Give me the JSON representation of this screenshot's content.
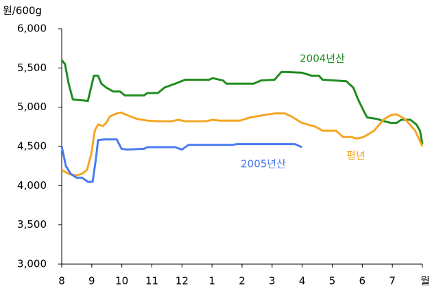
{
  "chart_data": {
    "type": "line",
    "y_axis_label": "원/600g",
    "xlim": [
      0,
      12
    ],
    "xticks": [
      {
        "value": 0,
        "label": "8"
      },
      {
        "value": 1,
        "label": "9"
      },
      {
        "value": 2,
        "label": "10"
      },
      {
        "value": 3,
        "label": "11"
      },
      {
        "value": 4,
        "label": "12"
      },
      {
        "value": 5,
        "label": "1"
      },
      {
        "value": 6,
        "label": "2"
      },
      {
        "value": 7,
        "label": "3"
      },
      {
        "value": 8,
        "label": "4"
      },
      {
        "value": 9,
        "label": "5"
      },
      {
        "value": 10,
        "label": "6"
      },
      {
        "value": 11,
        "label": "7"
      },
      {
        "value": 12,
        "label": "월"
      }
    ],
    "ylim": [
      3000,
      6000
    ],
    "yticks": [
      {
        "value": 3000,
        "label": "3,000"
      },
      {
        "value": 3500,
        "label": "3,500"
      },
      {
        "value": 4000,
        "label": "4,000"
      },
      {
        "value": 4500,
        "label": "4,500"
      },
      {
        "value": 5000,
        "label": "5,000"
      },
      {
        "value": 5500,
        "label": "5,500"
      },
      {
        "value": 6000,
        "label": "6,000"
      }
    ],
    "series": [
      {
        "name": "2004년산",
        "color": "#1e8c1e",
        "x": [
          0,
          0.11,
          0.23,
          0.37,
          0.87,
          1.07,
          1.21,
          1.32,
          1.48,
          1.71,
          1.94,
          2.1,
          2.74,
          2.85,
          3.2,
          3.42,
          3.77,
          4.11,
          4.91,
          5.02,
          5.37,
          5.48,
          6.39,
          6.62,
          7.08,
          7.31,
          7.99,
          8.33,
          8.56,
          8.68,
          9.47,
          9.7,
          9.86,
          10.05,
          10.16,
          10.5,
          10.73,
          10.96,
          11.14,
          11.3,
          11.6,
          11.8,
          11.92,
          12
        ],
        "values": [
          5600,
          5550,
          5300,
          5100,
          5080,
          5400,
          5400,
          5300,
          5250,
          5200,
          5200,
          5150,
          5150,
          5180,
          5180,
          5250,
          5300,
          5350,
          5350,
          5370,
          5340,
          5300,
          5300,
          5340,
          5350,
          5450,
          5440,
          5400,
          5400,
          5350,
          5330,
          5250,
          5100,
          4950,
          4870,
          4850,
          4820,
          4800,
          4800,
          4840,
          4840,
          4780,
          4700,
          4530
        ]
      },
      {
        "name": "평년",
        "color": "#f5a623",
        "x": [
          0,
          0.23,
          0.46,
          0.68,
          0.84,
          0.98,
          1.1,
          1.21,
          1.37,
          1.48,
          1.6,
          1.83,
          1.99,
          2.17,
          2.51,
          2.85,
          3.2,
          3.65,
          3.88,
          4.11,
          4.79,
          5.02,
          5.25,
          5.94,
          6.28,
          6.74,
          7.08,
          7.42,
          7.65,
          7.99,
          8.45,
          8.68,
          9.13,
          9.36,
          9.63,
          9.82,
          10.05,
          10.39,
          10.73,
          10.96,
          11.14,
          11.42,
          11.76,
          12
        ],
        "values": [
          4200,
          4150,
          4130,
          4150,
          4200,
          4400,
          4700,
          4780,
          4760,
          4800,
          4880,
          4920,
          4930,
          4900,
          4850,
          4830,
          4820,
          4820,
          4840,
          4820,
          4820,
          4840,
          4830,
          4830,
          4870,
          4900,
          4920,
          4920,
          4880,
          4800,
          4750,
          4700,
          4700,
          4620,
          4620,
          4600,
          4620,
          4700,
          4850,
          4900,
          4910,
          4850,
          4700,
          4500
        ]
      },
      {
        "name": "2005년산",
        "color": "#4a7cf0",
        "x": [
          0,
          0.14,
          0.3,
          0.5,
          0.68,
          0.87,
          1.03,
          1.14,
          1.21,
          1.42,
          1.83,
          1.99,
          2.17,
          2.74,
          2.85,
          3.77,
          4.0,
          4.22,
          5.71,
          5.82,
          7.76,
          7.99
        ],
        "values": [
          4500,
          4250,
          4150,
          4100,
          4100,
          4050,
          4050,
          4350,
          4580,
          4590,
          4590,
          4470,
          4460,
          4470,
          4490,
          4490,
          4460,
          4520,
          4520,
          4530,
          4530,
          4490
        ]
      }
    ]
  }
}
